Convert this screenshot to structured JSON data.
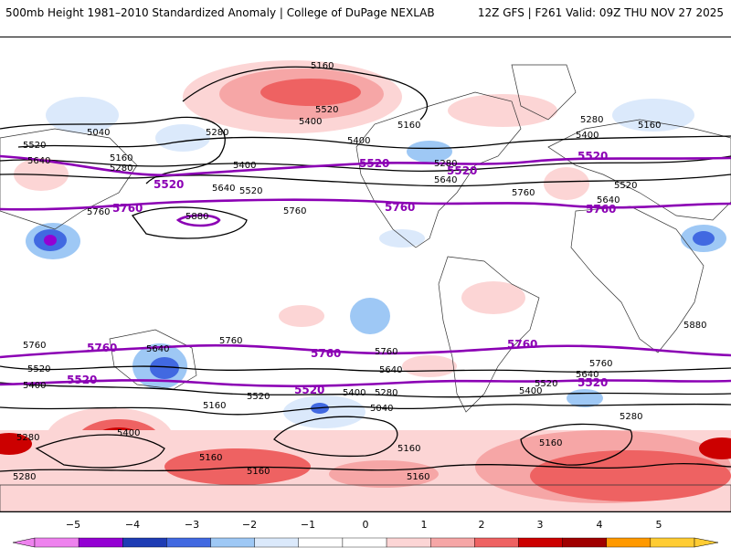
{
  "header": {
    "title": "500mb Height 1981–2010 Standardized Anomaly | College of DuPage NEXLAB",
    "run_info": "12Z GFS | F261 Valid: 09Z THU NOV 27 2025"
  },
  "contour_labels": {
    "c5160": "5160",
    "c5040": "5040",
    "c5280": "5280",
    "c5400": "5400",
    "c5520": "5520",
    "c5640": "5640",
    "c5760": "5760",
    "c5880": "5880"
  },
  "colorbar": {
    "ticks": [
      "−5",
      "−4",
      "−3",
      "−2",
      "−1",
      "0",
      "1",
      "2",
      "3",
      "4",
      "5"
    ],
    "colors": [
      "#ee82ee",
      "#9400d3",
      "#1e3cb4",
      "#4169e1",
      "#9ec8f5",
      "#dbe9fb",
      "#ffffff",
      "#ffffff",
      "#fcd5d5",
      "#f6a6a6",
      "#ee6262",
      "#cc0000",
      "#a00000",
      "#ff9900",
      "#ffcc33"
    ],
    "accent_5520_5760": "#8b00b4"
  }
}
